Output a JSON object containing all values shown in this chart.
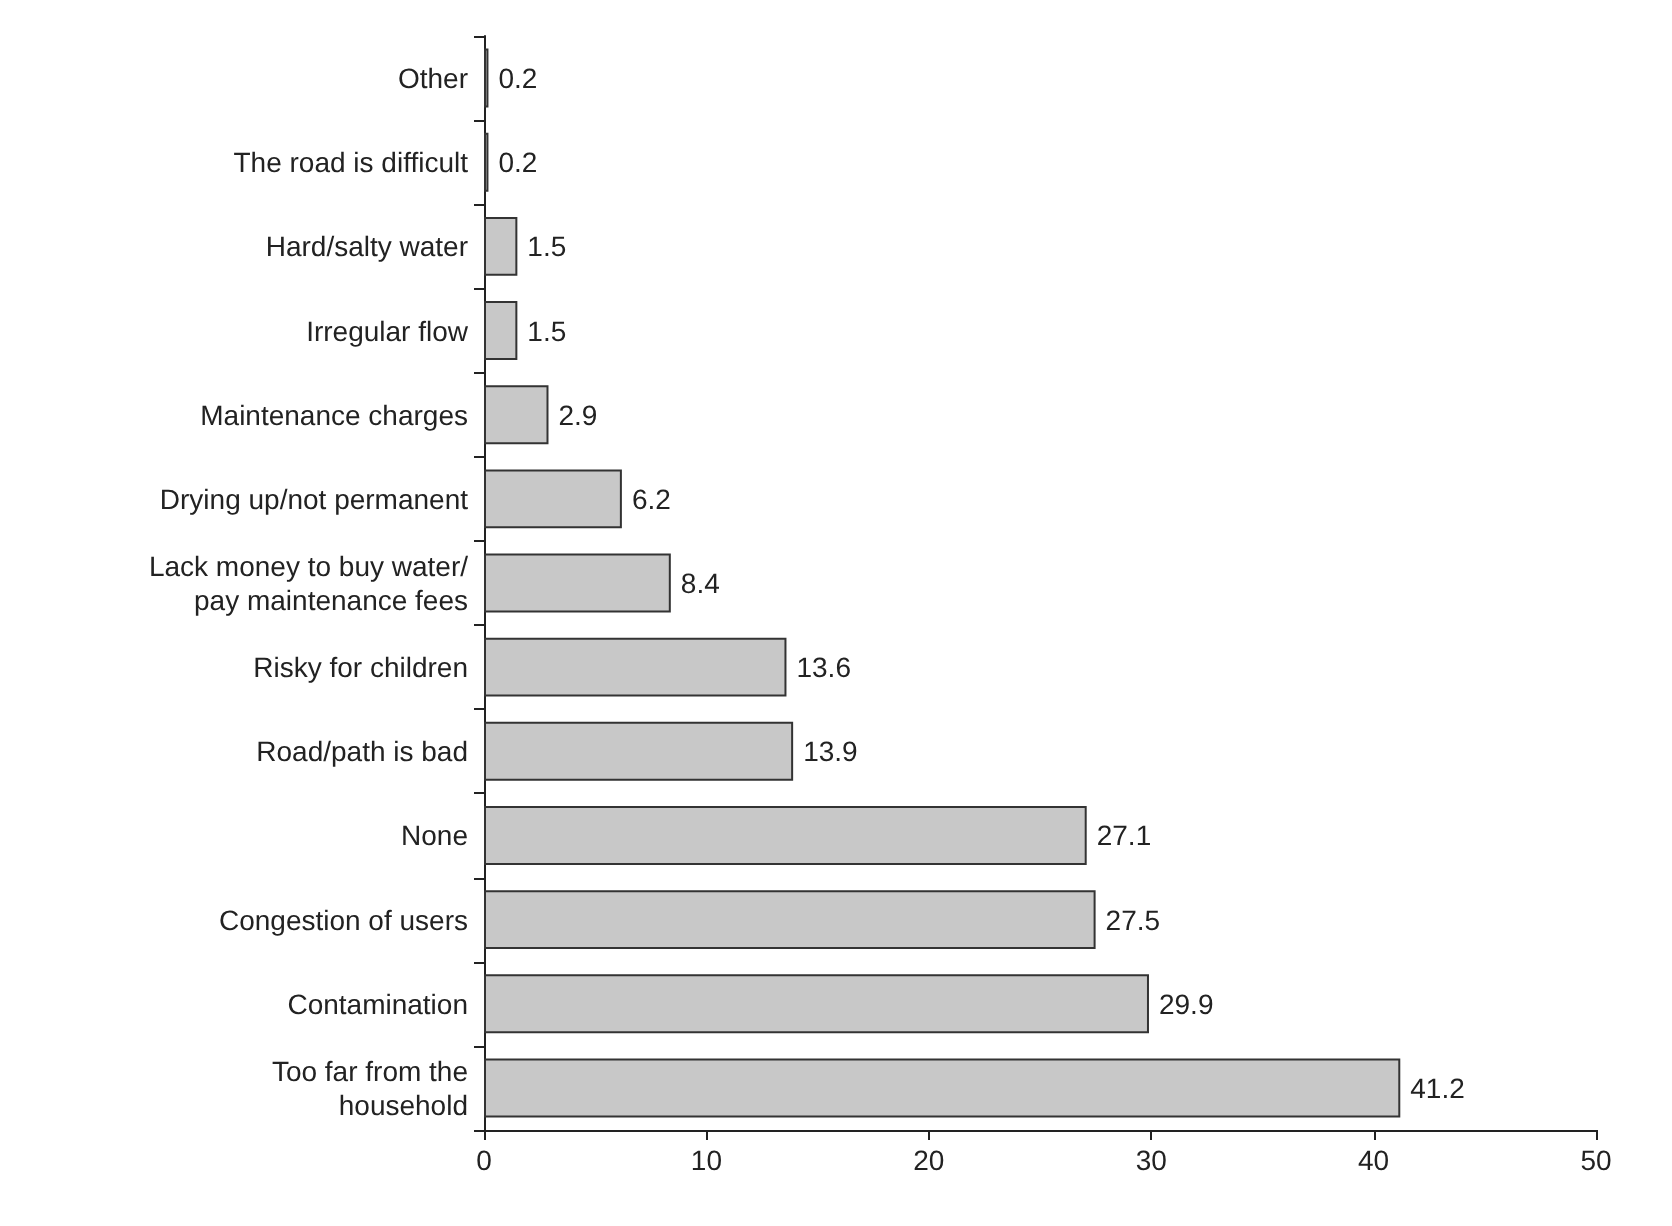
{
  "chart_data": {
    "type": "bar",
    "orientation": "horizontal",
    "categories": [
      "Other",
      "The road is difficult",
      "Hard/salty water",
      "Irregular flow",
      "Maintenance charges",
      "Drying up/not permanent",
      "Lack money to buy water/\npay maintenance fees",
      "Risky for children",
      "Road/path is bad",
      "None",
      "Congestion of users",
      "Contamination",
      "Too far from the\nhousehold"
    ],
    "values": [
      0.2,
      0.2,
      1.5,
      1.5,
      2.9,
      6.2,
      8.4,
      13.6,
      13.9,
      27.1,
      27.5,
      29.9,
      41.2
    ],
    "color": "#c8c8c8",
    "xlim": [
      0,
      50
    ],
    "xticks": [
      0,
      10,
      20,
      30,
      40,
      50
    ],
    "data_labels": true,
    "grid": false
  }
}
